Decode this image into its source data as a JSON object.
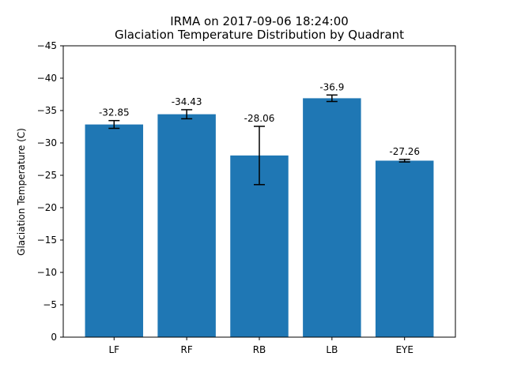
{
  "chart_data": {
    "type": "bar",
    "title": "IRMA on 2017-09-06 18:24:00",
    "subtitle": "Glaciation Temperature Distribution by Quadrant",
    "xlabel": "",
    "ylabel": "Glaciation Temperature (C)",
    "categories": [
      "LF",
      "RF",
      "RB",
      "LB",
      "EYE"
    ],
    "values": [
      -32.85,
      -34.43,
      -28.06,
      -36.9,
      -27.26
    ],
    "value_labels": [
      "-32.85",
      "-34.43",
      "-28.06",
      "-36.9",
      "-27.26"
    ],
    "errors": [
      0.6,
      0.7,
      4.5,
      0.5,
      0.2
    ],
    "ylim": [
      0,
      -45
    ],
    "yticks": [
      0,
      -5,
      -10,
      -15,
      -20,
      -25,
      -30,
      -35,
      -40,
      -45
    ],
    "ytick_labels": [
      "0",
      "−5",
      "−10",
      "−15",
      "−20",
      "−25",
      "−30",
      "−35",
      "−40",
      "−45"
    ],
    "bar_color": "#1f77b4",
    "grid": false
  }
}
